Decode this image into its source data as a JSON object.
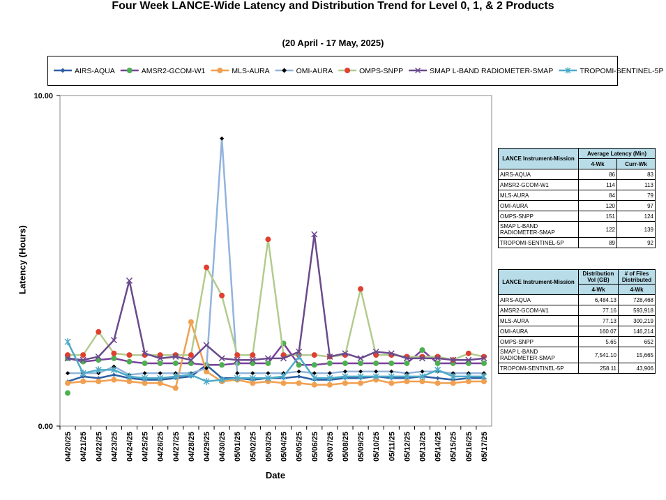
{
  "chart_data": {
    "type": "line",
    "title": "Four Week LANCE-Wide Latency and Distribution Trend for Level 0, 1, & 2 Products",
    "subtitle": "(20  April   - 17  May,  2025)",
    "xlabel": "Date",
    "ylabel": "Latency (Hours)",
    "ylim": [
      0,
      10
    ],
    "yticks": [
      "0.00",
      "10.00"
    ],
    "grid": false,
    "legend_position": "top",
    "categories": [
      "04/20/25",
      "04/21/25",
      "04/22/25",
      "04/23/25",
      "04/24/25",
      "04/25/25",
      "04/26/25",
      "04/27/25",
      "04/28/25",
      "04/29/25",
      "04/30/25",
      "05/01/25",
      "05/02/25",
      "05/03/25",
      "05/04/25",
      "05/05/25",
      "05/06/25",
      "05/07/25",
      "05/08/25",
      "05/09/25",
      "05/10/25",
      "05/11/25",
      "05/12/25",
      "05/13/25",
      "05/14/25",
      "05/15/25",
      "05/16/25",
      "05/17/25"
    ],
    "series": [
      {
        "name": "AIRS-AQUA",
        "color": "#2e5fa3",
        "marker": "diamond",
        "values": [
          1.35,
          1.5,
          1.45,
          1.55,
          1.45,
          1.4,
          1.4,
          1.45,
          1.5,
          1.85,
          1.45,
          1.45,
          1.4,
          1.45,
          1.45,
          1.5,
          1.4,
          1.4,
          1.45,
          1.45,
          1.5,
          1.45,
          1.45,
          1.5,
          1.45,
          1.4,
          1.45,
          1.45
        ]
      },
      {
        "name": "AMSR2-GCOM-W1",
        "color": "#7b3f9e",
        "marker": "circle",
        "values": [
          2.05,
          1.95,
          2.0,
          2.05,
          1.95,
          1.9,
          1.9,
          1.9,
          1.9,
          1.85,
          1.85,
          1.9,
          1.9,
          1.9,
          2.5,
          1.85,
          1.85,
          1.9,
          1.9,
          1.9,
          1.9,
          1.9,
          1.9,
          2.3,
          1.9,
          1.9,
          1.9,
          1.9
        ]
      },
      {
        "name": "MLS-AURA",
        "color": "#f0a050",
        "marker": "circle",
        "values": [
          1.3,
          1.35,
          1.35,
          1.4,
          1.35,
          1.3,
          1.3,
          1.15,
          3.15,
          1.65,
          1.35,
          1.4,
          1.3,
          1.35,
          1.3,
          1.3,
          1.25,
          1.25,
          1.3,
          1.3,
          1.4,
          1.3,
          1.35,
          1.35,
          1.3,
          1.3,
          1.35,
          1.35
        ]
      },
      {
        "name": "OMI-AURA",
        "color": "#92b4dc",
        "marker": "diamond",
        "values": [
          1.6,
          1.6,
          1.6,
          1.8,
          1.55,
          1.6,
          1.6,
          1.6,
          1.6,
          1.75,
          8.7,
          1.6,
          1.6,
          1.6,
          1.6,
          1.65,
          1.6,
          1.6,
          1.65,
          1.65,
          1.65,
          1.65,
          1.6,
          1.65,
          1.65,
          1.6,
          1.6,
          1.6
        ]
      },
      {
        "name": "OMPS-SNPP",
        "color": "#b2cc8e",
        "marker": "circle",
        "values": [
          2.15,
          2.15,
          2.85,
          2.2,
          2.15,
          2.15,
          2.15,
          2.15,
          2.15,
          4.8,
          3.95,
          2.15,
          2.15,
          5.65,
          2.15,
          2.15,
          2.15,
          2.1,
          2.15,
          4.15,
          2.15,
          2.15,
          2.1,
          2.1,
          2.1,
          2.0,
          2.2,
          2.1
        ]
      },
      {
        "name": "SMAP L-BAND RADIOMETER-SMAP",
        "color": "#6b4a8c",
        "marker": "x",
        "values": [
          2.05,
          2.0,
          2.1,
          2.6,
          4.4,
          2.2,
          2.05,
          2.1,
          2.0,
          2.45,
          2.05,
          2.0,
          2.0,
          2.05,
          2.05,
          2.25,
          5.8,
          2.1,
          2.2,
          2.05,
          2.25,
          2.2,
          2.05,
          2.05,
          2.05,
          2.0,
          2.0,
          2.05
        ]
      },
      {
        "name": "TROPOMI-SENTINEL-5P",
        "color": "#4eabc8",
        "marker": "star",
        "values": [
          2.55,
          1.6,
          1.7,
          1.7,
          1.5,
          1.45,
          1.45,
          1.5,
          1.55,
          1.35,
          1.4,
          1.45,
          1.45,
          1.45,
          1.5,
          2.1,
          1.45,
          1.45,
          1.5,
          1.5,
          1.5,
          1.5,
          1.5,
          1.5,
          1.7,
          1.5,
          1.5,
          1.5
        ]
      }
    ],
    "extra_points": [
      {
        "series": "AMSR2-GCOM-W1",
        "x": "04/20/25",
        "y": 1.0
      }
    ]
  },
  "latency_table": {
    "header_mission": "LANCE Instrument-Mission",
    "header_group": "Average Latency (Min)",
    "col1": "4-Wk",
    "col2": "Curr-Wk",
    "rows": [
      {
        "mission": "AIRS-AQUA",
        "v1": "86",
        "v2": "83"
      },
      {
        "mission": "AMSR2-GCOM-W1",
        "v1": "114",
        "v2": "113"
      },
      {
        "mission": "MLS-AURA",
        "v1": "84",
        "v2": "79"
      },
      {
        "mission": "OMI-AURA",
        "v1": "120",
        "v2": "97"
      },
      {
        "mission": "OMPS-SNPP",
        "v1": "151",
        "v2": "124"
      },
      {
        "mission": "SMAP L-BAND RADIOMETER-SMAP",
        "v1": "122",
        "v2": "139"
      },
      {
        "mission": "TROPOMI-SENTINEL-5P",
        "v1": "89",
        "v2": "92"
      }
    ]
  },
  "distribution_table": {
    "header_mission": "LANCE Instrument-Mission",
    "header_vol": "Distribution Vol (GB)",
    "header_files": "# of Files Distributed",
    "col1": "4-Wk",
    "col2": "4-Wk",
    "rows": [
      {
        "mission": "AIRS-AQUA",
        "v1": "6,484.13",
        "v2": "728,468"
      },
      {
        "mission": "AMSR2-GCOM-W1",
        "v1": "77.16",
        "v2": "593,918"
      },
      {
        "mission": "MLS-AURA",
        "v1": "77.13",
        "v2": "300,219"
      },
      {
        "mission": "OMI-AURA",
        "v1": "160.07",
        "v2": "146,214"
      },
      {
        "mission": "OMPS-SNPP",
        "v1": "5.65",
        "v2": "652"
      },
      {
        "mission": "SMAP L-BAND RADIOMETER-SMAP",
        "v1": "7,541.10",
        "v2": "15,665"
      },
      {
        "mission": "TROPOMI-SENTINEL-5P",
        "v1": "258.11",
        "v2": "43,906"
      }
    ]
  }
}
